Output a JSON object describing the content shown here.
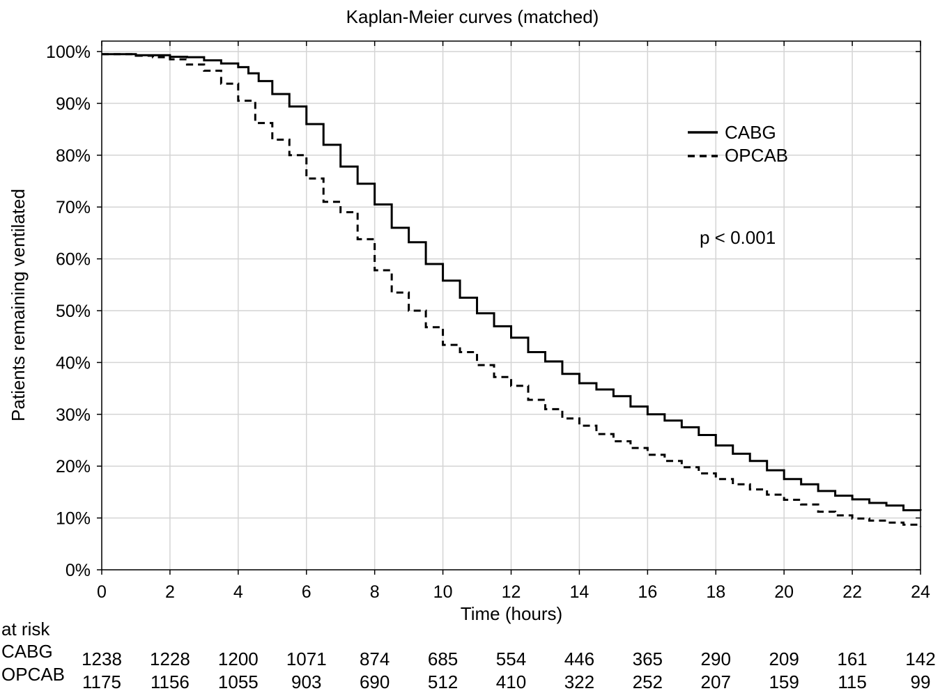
{
  "chart_data": {
    "type": "line",
    "title": "Kaplan-Meier curves (matched)",
    "xlabel": "Time (hours)",
    "ylabel": "Patients remaining ventilated",
    "xlim": [
      0,
      24
    ],
    "ylim": [
      0,
      100
    ],
    "x_ticks": [
      0,
      2,
      4,
      6,
      8,
      10,
      12,
      14,
      16,
      18,
      20,
      22,
      24
    ],
    "x_tick_labels": [
      "0",
      "2",
      "4",
      "6",
      "8",
      "10",
      "12",
      "14",
      "16",
      "18",
      "20",
      "22",
      "24"
    ],
    "y_ticks": [
      0,
      10,
      20,
      30,
      40,
      50,
      60,
      70,
      80,
      90,
      100
    ],
    "y_tick_labels": [
      "0%",
      "10%",
      "20%",
      "30%",
      "40%",
      "50%",
      "60%",
      "70%",
      "80%",
      "90%",
      "100%"
    ],
    "grid": true,
    "legend_position": "top-right",
    "annotation": "p < 0.001",
    "series": [
      {
        "name": "CABG",
        "style": "solid",
        "x": [
          0,
          1,
          2,
          2.5,
          3,
          3.5,
          4,
          4.3,
          4.6,
          5,
          5.5,
          6,
          6.5,
          7,
          7.5,
          8,
          8.5,
          9,
          9.5,
          10,
          10.5,
          11,
          11.5,
          12,
          12.5,
          13,
          13.5,
          14,
          14.5,
          15,
          15.5,
          16,
          16.5,
          17,
          17.5,
          18,
          18.5,
          19,
          19.5,
          20,
          20.5,
          21,
          21.5,
          22,
          22.5,
          23,
          23.5,
          24
        ],
        "y": [
          99.5,
          99.3,
          99.0,
          98.9,
          98.3,
          97.7,
          97.0,
          95.8,
          94.3,
          91.8,
          89.4,
          86.0,
          82.0,
          77.8,
          74.5,
          70.5,
          66.0,
          63.2,
          59.0,
          55.8,
          52.5,
          49.5,
          47.0,
          44.8,
          42.0,
          40.2,
          37.8,
          36.0,
          34.8,
          33.5,
          31.5,
          30.0,
          28.8,
          27.5,
          26.0,
          24.0,
          22.4,
          21.0,
          19.2,
          17.5,
          16.5,
          15.2,
          14.3,
          13.6,
          12.9,
          12.4,
          11.5,
          11.4
        ]
      },
      {
        "name": "OPCAB",
        "style": "dashed",
        "x": [
          0,
          1,
          1.5,
          2,
          2.5,
          3,
          3.5,
          4,
          4.5,
          5,
          5.5,
          6,
          6.5,
          7,
          7.5,
          8,
          8.5,
          9,
          9.5,
          10,
          10.5,
          11,
          11.5,
          12,
          12.5,
          13,
          13.5,
          14,
          14.5,
          15,
          15.5,
          16,
          16.5,
          17,
          17.5,
          18,
          18.5,
          19,
          19.5,
          20,
          20.5,
          21,
          21.5,
          22,
          22.5,
          23,
          23.5,
          24
        ],
        "y": [
          99.5,
          99.2,
          98.9,
          98.5,
          97.5,
          96.3,
          93.8,
          90.5,
          86.2,
          83.0,
          80.0,
          75.5,
          71.0,
          69.0,
          63.8,
          57.8,
          53.5,
          50.0,
          46.8,
          43.4,
          42.0,
          39.5,
          37.2,
          35.5,
          32.8,
          31.0,
          29.2,
          27.8,
          26.2,
          24.8,
          23.5,
          22.2,
          21.0,
          19.8,
          18.6,
          17.5,
          16.5,
          15.5,
          14.5,
          13.5,
          12.6,
          11.2,
          10.5,
          9.9,
          9.5,
          9.1,
          8.7,
          8.3
        ]
      }
    ],
    "at_risk": {
      "header": "at risk",
      "rows": [
        {
          "label": "CABG",
          "values": [
            1238,
            1228,
            1200,
            1071,
            874,
            685,
            554,
            446,
            365,
            290,
            209,
            161,
            142
          ]
        },
        {
          "label": "OPCAB",
          "values": [
            1175,
            1156,
            1055,
            903,
            690,
            512,
            410,
            322,
            252,
            207,
            159,
            115,
            99
          ]
        }
      ]
    }
  }
}
